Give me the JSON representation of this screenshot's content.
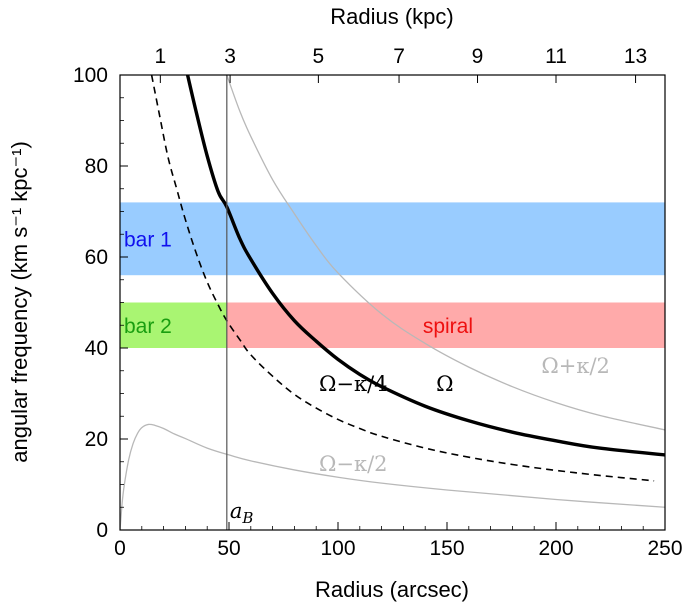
{
  "chart_data": {
    "type": "line",
    "xlabel": "Radius (arcsec)",
    "ylabel": "angular frequency (km s⁻¹ kpc⁻¹)",
    "x2label": "Radius (kpc)",
    "xlim": [
      0,
      250
    ],
    "ylim": [
      0,
      100
    ],
    "xticks": [
      "0",
      "50",
      "100",
      "150",
      "200",
      "250"
    ],
    "yticks": [
      "0",
      "20",
      "40",
      "60",
      "80",
      "100"
    ],
    "x2ticks": [
      "1",
      "3",
      "5",
      "7",
      "9",
      "11",
      "13"
    ],
    "x2tick_positions_arcsec": [
      18.5,
      50.5,
      91,
      128,
      164,
      200,
      236.5
    ],
    "grid": false,
    "bands": [
      {
        "label": "bar 1",
        "x": [
          0,
          250
        ],
        "y": [
          56,
          72
        ],
        "color": "#99ccff",
        "label_color": "#1010ee"
      },
      {
        "label": "bar 2",
        "x": [
          0,
          49
        ],
        "y": [
          40,
          50
        ],
        "color": "#a9f572",
        "label_color": "#1a9e10"
      },
      {
        "label": "spiral",
        "x": [
          49,
          250
        ],
        "y": [
          40,
          50
        ],
        "color": "#ffaaaa",
        "label_color": "#ee1010"
      }
    ],
    "vline": {
      "x": 49,
      "label": "aB",
      "color": "#555555"
    },
    "series": [
      {
        "name": "Ω",
        "style": "thick-solid",
        "color": "#000000",
        "x": [
          31,
          35,
          40,
          45,
          49,
          55,
          60,
          70,
          80,
          90,
          100,
          110,
          120,
          140,
          160,
          180,
          200,
          220,
          250
        ],
        "y": [
          100,
          91.8,
          82.2,
          74.4,
          71,
          64,
          59.5,
          52,
          46,
          41.5,
          37.5,
          34.2,
          31.5,
          27.2,
          24,
          21.5,
          19.6,
          18,
          16.5
        ]
      },
      {
        "name": "Ω−κ/4",
        "style": "dashed",
        "color": "#000000",
        "x": [
          14.5,
          18,
          22,
          26,
          30,
          35,
          40,
          45,
          49,
          55,
          60,
          70,
          80,
          90,
          100,
          110,
          120,
          140,
          160,
          180,
          200,
          220,
          245
        ],
        "y": [
          100,
          91.5,
          82,
          75,
          68.2,
          60.8,
          54.5,
          49.5,
          46,
          41.8,
          38.5,
          33.8,
          29.8,
          26.8,
          24.3,
          22.3,
          20.6,
          18,
          16,
          14.4,
          13.1,
          12,
          10.8
        ]
      },
      {
        "name": "Ω+κ/2",
        "style": "thin-solid",
        "color": "#b8b8b8",
        "x": [
          49,
          55,
          60,
          70,
          80,
          90,
          100,
          120,
          140,
          160,
          180,
          200,
          220,
          250
        ],
        "y": [
          100,
          92,
          86.5,
          77,
          69.5,
          62.5,
          56.5,
          47.5,
          41,
          35.8,
          31.5,
          28,
          25.2,
          22
        ]
      },
      {
        "name": "Ω−κ/2",
        "style": "thin-solid",
        "color": "#b8b8b8",
        "x": [
          0,
          1,
          2,
          4,
          6,
          8,
          10,
          13,
          16,
          20,
          25,
          30,
          40,
          50,
          60,
          80,
          100,
          120,
          150,
          200,
          250
        ],
        "y": [
          0,
          6,
          10,
          15.5,
          19,
          21.2,
          22.5,
          23.2,
          23,
          22.3,
          21.1,
          20.1,
          18,
          16.5,
          15.2,
          13.2,
          11.6,
          10.3,
          8.8,
          6.7,
          5
        ]
      }
    ],
    "annotations": [
      {
        "text": "Ω−κ/4",
        "x": 107,
        "y": 30.5,
        "color": "#000000"
      },
      {
        "text": "Ω",
        "x": 149,
        "y": 30.5,
        "color": "#000000"
      },
      {
        "text": "Ω+κ/2",
        "x": 209,
        "y": 34.5,
        "color": "#b8b8b8"
      },
      {
        "text": "Ω−κ/2",
        "x": 107,
        "y": 13,
        "color": "#b8b8b8"
      }
    ]
  }
}
